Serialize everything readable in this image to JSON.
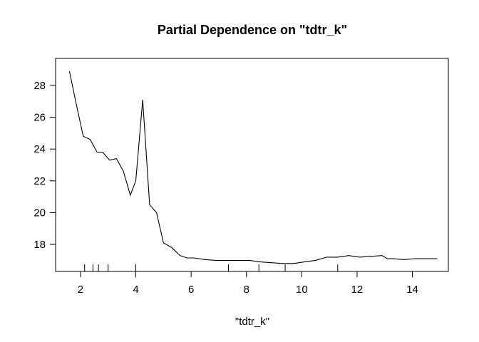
{
  "chart_data": {
    "type": "line",
    "title": "Partial Dependence on \"tdtr_k\"",
    "xlabel": "\"tdtr_k\"",
    "ylabel": "",
    "xlim": [
      1.1,
      15.3
    ],
    "ylim": [
      16.3,
      29.7
    ],
    "xticks": [
      2,
      4,
      6,
      8,
      10,
      12,
      14
    ],
    "yticks": [
      18,
      20,
      22,
      24,
      26,
      28
    ],
    "grid": false,
    "series": [
      {
        "x": [
          1.6,
          1.85,
          2.1,
          2.35,
          2.6,
          2.8,
          3.05,
          3.3,
          3.55,
          3.8,
          4.0,
          4.25,
          4.5,
          4.75,
          5.0,
          5.3,
          5.6,
          5.85,
          6.1,
          6.5,
          6.9,
          7.3,
          7.7,
          8.1,
          8.5,
          8.9,
          9.3,
          9.7,
          10.1,
          10.5,
          10.9,
          11.3,
          11.7,
          12.1,
          12.5,
          12.9,
          13.1,
          13.3,
          13.7,
          14.1,
          14.5,
          14.9
        ],
        "y": [
          28.9,
          26.8,
          24.8,
          24.6,
          23.8,
          23.8,
          23.3,
          23.4,
          22.6,
          21.1,
          22.0,
          27.1,
          20.5,
          20.0,
          18.1,
          17.8,
          17.3,
          17.15,
          17.15,
          17.05,
          17.0,
          17.0,
          17.0,
          17.0,
          16.9,
          16.85,
          16.8,
          16.8,
          16.9,
          17.0,
          17.2,
          17.2,
          17.3,
          17.2,
          17.25,
          17.3,
          17.1,
          17.1,
          17.05,
          17.1,
          17.1,
          17.1
        ]
      }
    ],
    "rug_x": [
      2.15,
      2.45,
      2.65,
      3.0,
      4.0,
      7.35,
      8.45,
      9.4,
      11.3
    ]
  }
}
